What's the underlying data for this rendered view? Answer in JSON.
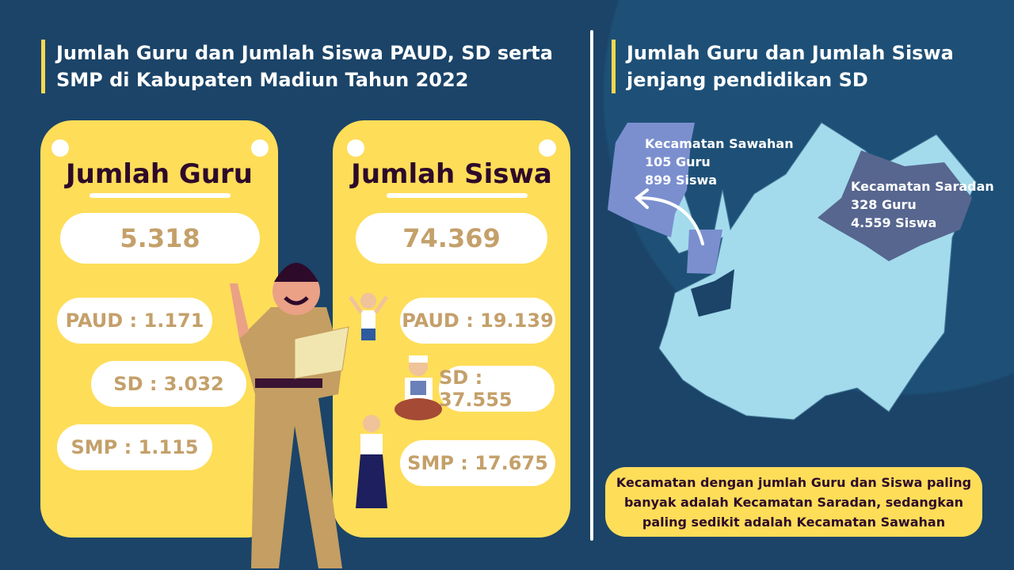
{
  "left_title": "Jumlah Guru dan Jumlah Siswa PAUD, SD serta SMP di Kabupaten Madiun Tahun 2022",
  "right_title": "Jumlah Guru dan Jumlah Siswa jenjang pendidikan SD",
  "guru": {
    "heading": "Jumlah Guru",
    "total": "5.318",
    "paud": "PAUD : 1.171",
    "sd": "SD : 3.032",
    "smp": "SMP : 1.115"
  },
  "siswa": {
    "heading": "Jumlah Siswa",
    "total": "74.369",
    "paud": "PAUD : 19.139",
    "sd": "SD : 37.555",
    "smp": "SMP : 17.675"
  },
  "map": {
    "sawahan": {
      "name": "Kecamatan Sawahan",
      "guru": "105 Guru",
      "siswa": "899 Siswa",
      "color": "#7b8fcf"
    },
    "saradan": {
      "name": "Kecamatan Saradan",
      "guru": "328 Guru",
      "siswa": "4.559 Siswa",
      "color": "#56668f"
    },
    "region_color": "#a3dbec"
  },
  "note": "Kecamatan dengan jumlah Guru dan Siswa paling banyak adalah Kecamatan Saradan, sedangkan paling sedikit adalah Kecamatan Sawahan",
  "colors": {
    "background": "#1b4468",
    "card": "#fedd59",
    "value": "#c4a06a",
    "heading": "#2e0a2a"
  }
}
